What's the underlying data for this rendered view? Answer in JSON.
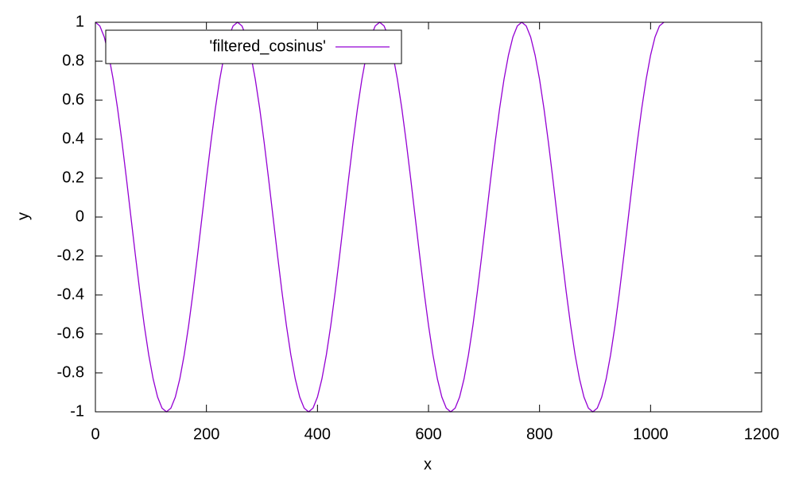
{
  "chart_data": {
    "type": "line",
    "x_label": "x",
    "y_label": "y",
    "x": [
      0,
      8,
      16,
      24,
      32,
      40,
      48,
      56,
      64,
      72,
      80,
      88,
      96,
      104,
      112,
      120,
      128,
      136,
      144,
      152,
      160,
      168,
      176,
      184,
      192,
      200,
      208,
      216,
      224,
      232,
      240,
      248,
      256,
      264,
      272,
      280,
      288,
      296,
      304,
      312,
      320,
      328,
      336,
      344,
      352,
      360,
      368,
      376,
      384,
      392,
      400,
      408,
      416,
      424,
      432,
      440,
      448,
      456,
      464,
      472,
      480,
      488,
      496,
      504,
      512,
      520,
      528,
      536,
      544,
      552,
      560,
      568,
      576,
      584,
      592,
      600,
      608,
      616,
      624,
      632,
      640,
      648,
      656,
      664,
      672,
      680,
      688,
      696,
      704,
      712,
      720,
      728,
      736,
      744,
      752,
      760,
      768,
      776,
      784,
      792,
      800,
      808,
      816,
      824,
      832,
      840,
      848,
      856,
      864,
      872,
      880,
      888,
      896,
      904,
      912,
      920,
      928,
      936,
      944,
      952,
      960,
      968,
      976,
      984,
      992,
      1000,
      1008,
      1016,
      1024
    ],
    "series": [
      {
        "name": "'filtered_cosinus'",
        "color": "#9400d3",
        "values": [
          1,
          0.981,
          0.924,
          0.831,
          0.707,
          0.556,
          0.383,
          0.195,
          0,
          -0.195,
          -0.383,
          -0.556,
          -0.707,
          -0.831,
          -0.924,
          -0.981,
          -1,
          -0.981,
          -0.924,
          -0.831,
          -0.707,
          -0.556,
          -0.383,
          -0.195,
          0,
          0.195,
          0.383,
          0.556,
          0.707,
          0.831,
          0.924,
          0.981,
          1,
          0.981,
          0.924,
          0.831,
          0.707,
          0.556,
          0.383,
          0.195,
          0,
          -0.195,
          -0.383,
          -0.556,
          -0.707,
          -0.831,
          -0.924,
          -0.981,
          -1,
          -0.981,
          -0.924,
          -0.831,
          -0.707,
          -0.556,
          -0.383,
          -0.195,
          0,
          0.195,
          0.383,
          0.556,
          0.707,
          0.831,
          0.924,
          0.981,
          1,
          0.981,
          0.924,
          0.831,
          0.707,
          0.556,
          0.383,
          0.195,
          0,
          -0.195,
          -0.383,
          -0.556,
          -0.707,
          -0.831,
          -0.924,
          -0.981,
          -1,
          -0.981,
          -0.924,
          -0.831,
          -0.707,
          -0.556,
          -0.383,
          -0.195,
          0,
          0.195,
          0.383,
          0.556,
          0.707,
          0.831,
          0.924,
          0.981,
          1,
          0.981,
          0.924,
          0.831,
          0.707,
          0.556,
          0.383,
          0.195,
          0,
          -0.195,
          -0.383,
          -0.556,
          -0.707,
          -0.831,
          -0.924,
          -0.981,
          -1,
          -0.981,
          -0.924,
          -0.831,
          -0.707,
          -0.556,
          -0.383,
          -0.195,
          0,
          0.195,
          0.383,
          0.556,
          0.707,
          0.831,
          0.924,
          0.981,
          1
        ]
      }
    ],
    "xlim": [
      0,
      1200
    ],
    "xticks": [
      0,
      200,
      400,
      600,
      800,
      1000,
      1200
    ],
    "ylim": [
      -1,
      1
    ],
    "yticks": [
      -1,
      -0.8,
      -0.6,
      -0.4,
      -0.2,
      0,
      0.2,
      0.4,
      0.6,
      0.8,
      1
    ],
    "grid": false,
    "legend": "top-left"
  }
}
